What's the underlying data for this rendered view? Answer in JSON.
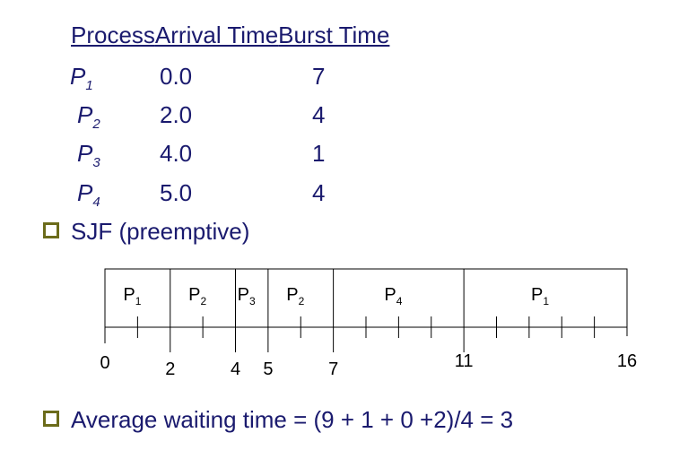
{
  "table": {
    "headers": [
      "Process",
      "Arrival Time",
      "Burst Time"
    ],
    "rows": [
      {
        "p": "P",
        "sub": "1",
        "arrival": "0.0",
        "burst": "7"
      },
      {
        "p": "P",
        "sub": "2",
        "arrival": "2.0",
        "burst": "4"
      },
      {
        "p": "P",
        "sub": "3",
        "arrival": "4.0",
        "burst": "1"
      },
      {
        "p": "P",
        "sub": "4",
        "arrival": "5.0",
        "burst": "4"
      }
    ]
  },
  "bullets": {
    "sjf": "SJF (preemptive)",
    "avg": "Average waiting time = (9 + 1 + 0 +2)/4 = 3"
  },
  "gantt": {
    "start": 0,
    "end": 16,
    "segments": [
      {
        "label": "P",
        "sub": "1",
        "start": 0,
        "end": 2
      },
      {
        "label": "P",
        "sub": "2",
        "start": 2,
        "end": 4
      },
      {
        "label": "P",
        "sub": "3",
        "start": 4,
        "end": 5
      },
      {
        "label": "P",
        "sub": "2",
        "start": 5,
        "end": 7
      },
      {
        "label": "P",
        "sub": "4",
        "start": 7,
        "end": 11
      },
      {
        "label": "P",
        "sub": "1",
        "start": 11,
        "end": 16
      }
    ],
    "time_labels": [
      "0",
      "2",
      "4",
      "5",
      "7",
      "11",
      "16"
    ]
  }
}
